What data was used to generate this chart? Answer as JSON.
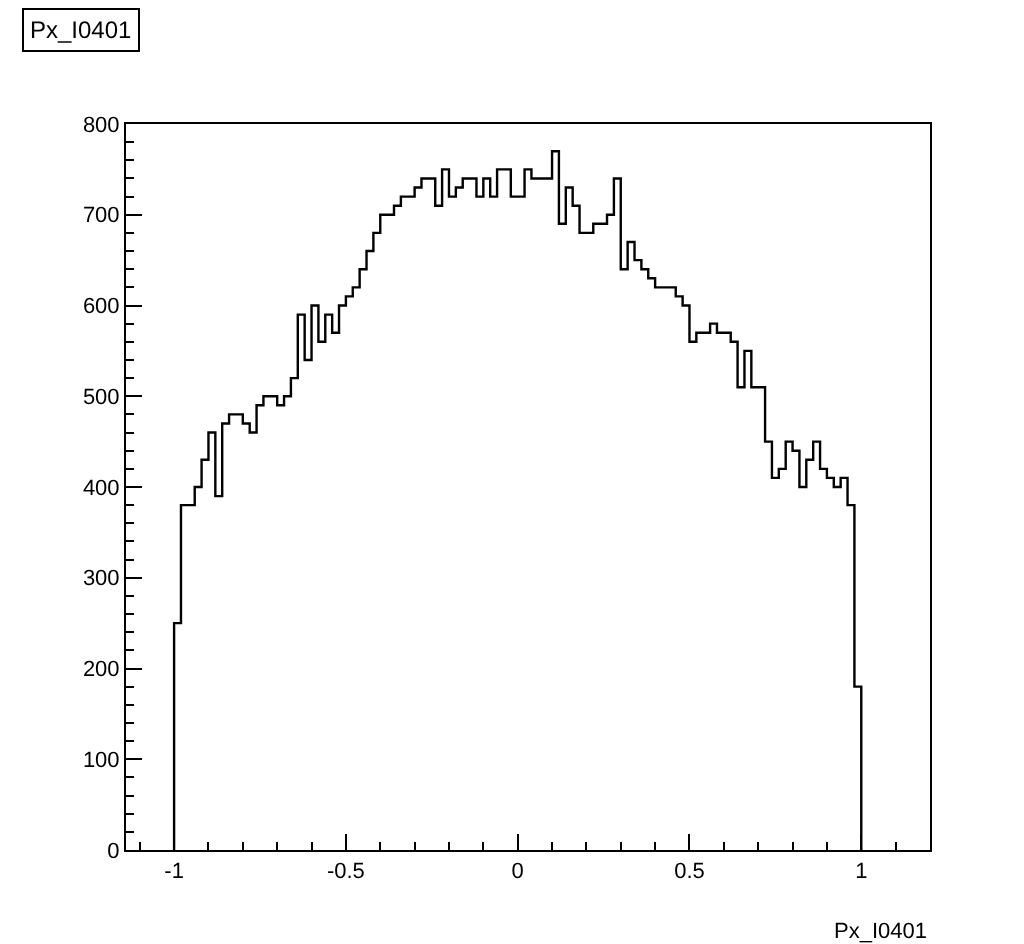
{
  "chart_data": {
    "type": "histogram",
    "title": "Px_I0401",
    "xlabel": "Px_I0401",
    "color": "#000000",
    "bins": [
      -1,
      -0.98,
      -0.96,
      -0.94,
      -0.92,
      -0.9,
      -0.88,
      -0.86,
      -0.84,
      -0.82,
      -0.8,
      -0.78,
      -0.76,
      -0.74,
      -0.72,
      -0.7,
      -0.68,
      -0.66,
      -0.64,
      -0.62,
      -0.6,
      -0.58,
      -0.56,
      -0.54,
      -0.52,
      -0.5,
      -0.48,
      -0.46,
      -0.44,
      -0.42,
      -0.4,
      -0.38,
      -0.36,
      -0.34,
      -0.32,
      -0.3,
      -0.28,
      -0.26,
      -0.24,
      -0.22,
      -0.2,
      -0.18,
      -0.16,
      -0.14,
      -0.12,
      -0.1,
      -0.08,
      -0.06,
      -0.04,
      -0.02,
      0,
      0.02,
      0.04,
      0.06,
      0.08,
      0.1,
      0.12,
      0.14,
      0.16,
      0.18,
      0.2,
      0.22,
      0.24,
      0.26,
      0.28,
      0.3,
      0.32,
      0.34,
      0.36,
      0.38,
      0.4,
      0.42,
      0.44,
      0.46,
      0.48,
      0.5,
      0.52,
      0.54,
      0.56,
      0.58,
      0.6,
      0.62,
      0.64,
      0.66,
      0.68,
      0.7,
      0.72,
      0.74,
      0.76,
      0.78,
      0.8,
      0.82,
      0.84,
      0.86,
      0.88,
      0.9,
      0.92,
      0.94,
      0.96,
      0.98,
      1
    ],
    "values": [
      250,
      380,
      380,
      400,
      430,
      460,
      390,
      470,
      480,
      480,
      470,
      460,
      490,
      500,
      500,
      490,
      500,
      520,
      590,
      540,
      600,
      560,
      590,
      570,
      600,
      610,
      620,
      640,
      660,
      680,
      700,
      700,
      710,
      720,
      720,
      730,
      740,
      740,
      710,
      750,
      720,
      730,
      740,
      740,
      720,
      740,
      720,
      750,
      750,
      720,
      720,
      750,
      740,
      740,
      740,
      770,
      690,
      730,
      710,
      680,
      680,
      690,
      690,
      700,
      740,
      640,
      670,
      650,
      640,
      630,
      620,
      620,
      620,
      610,
      600,
      560,
      570,
      570,
      580,
      570,
      570,
      560,
      510,
      550,
      510,
      510,
      450,
      410,
      420,
      450,
      440,
      400,
      430,
      450,
      420,
      410,
      400,
      410,
      380,
      180
    ],
    "xlim": [
      -1.14,
      1.2
    ],
    "xticks": [
      -1,
      -0.5,
      0,
      0.5,
      1
    ],
    "ylim": [
      0,
      800
    ],
    "yticks": [
      0,
      100,
      200,
      300,
      400,
      500,
      600,
      700,
      800
    ]
  }
}
